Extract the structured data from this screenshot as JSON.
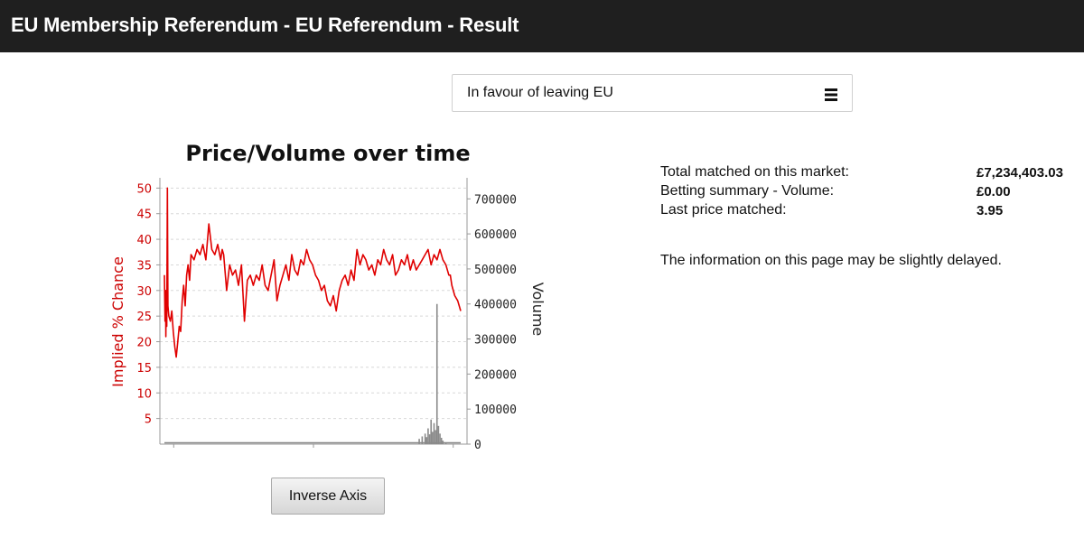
{
  "header": {
    "title": "EU Membership Referendum - EU Referendum - Result"
  },
  "selector": {
    "selected": "In favour of leaving EU",
    "icon": "hamburger-menu-icon"
  },
  "summary": {
    "rows": [
      {
        "label": "Total matched on this market:",
        "value": "£7,234,403.03"
      },
      {
        "label": "Betting summary - Volume:",
        "value": "£0.00"
      },
      {
        "label": "Last price matched:",
        "value": "3.95"
      }
    ],
    "notice": "The information on this page may be slightly delayed."
  },
  "inverse_button": {
    "label": "Inverse Axis"
  },
  "colors": {
    "header_bg": "#1f1f1f",
    "price_line": "#e00000",
    "left_axis": "#cc0000",
    "volume_bars": "#8a8a8a"
  },
  "chart_data": {
    "type": "line",
    "title": "Price/Volume over time",
    "ylabel": "Implied % Chance",
    "y2label": "Volume",
    "ylim": [
      0,
      52
    ],
    "y2lim": [
      0,
      760000
    ],
    "yticks": [
      "5",
      "10",
      "15",
      "20",
      "25",
      "30",
      "35",
      "40",
      "45",
      "50"
    ],
    "y2ticks": [
      "0",
      "100000",
      "200000",
      "300000",
      "400000",
      "500000",
      "600000",
      "700000"
    ],
    "grid": true,
    "series": [
      {
        "axis": "left",
        "color": "#e00000",
        "x": [
          0,
          0.2,
          0.4,
          0.5,
          0.6,
          0.8,
          1,
          1.2,
          1.5,
          2,
          2.5,
          3,
          3.5,
          4,
          4.5,
          5,
          5.5,
          6,
          6.5,
          7,
          7.5,
          8,
          8.5,
          9,
          10,
          11,
          12,
          13,
          14,
          15,
          16,
          17,
          18,
          19,
          19.5,
          20,
          21,
          22,
          23,
          24,
          25,
          26,
          27,
          28,
          29,
          30,
          31,
          32,
          33,
          34,
          35,
          36,
          37,
          38,
          39,
          40,
          41,
          42,
          43,
          44,
          45,
          46,
          47,
          48,
          49,
          50,
          51,
          52,
          53,
          54,
          55,
          56,
          57,
          58,
          59,
          60,
          61,
          62,
          63,
          64,
          65,
          66,
          67,
          68,
          69,
          70,
          71,
          72,
          73,
          74,
          75,
          76,
          77,
          78,
          79,
          80,
          81,
          82,
          83,
          84,
          85,
          86,
          87,
          88,
          89,
          90,
          91,
          92,
          93,
          94,
          95,
          96,
          96.5,
          97,
          98,
          99,
          100
        ],
        "values": [
          33,
          24,
          30,
          21,
          29,
          23,
          50,
          27,
          25,
          24,
          26,
          22,
          19,
          17,
          20,
          23,
          22,
          28,
          31,
          27,
          33,
          35,
          32,
          37,
          36,
          38,
          37,
          39,
          36,
          43,
          38,
          37,
          39,
          36,
          38,
          37,
          30,
          35,
          33,
          34,
          31,
          35,
          24,
          32,
          33,
          31,
          33,
          32,
          35,
          31,
          30,
          33,
          36,
          28,
          31,
          33,
          35,
          32,
          37,
          34,
          33,
          36,
          35,
          38,
          36,
          35,
          33,
          32,
          30,
          31,
          28,
          27,
          29,
          26,
          30,
          32,
          33,
          31,
          34,
          32,
          38,
          35,
          37,
          36,
          34,
          35,
          33,
          36,
          35,
          38,
          36,
          35,
          37,
          33,
          34,
          36,
          35,
          37,
          34,
          36,
          34,
          35,
          36,
          37,
          38,
          35,
          37,
          36,
          38,
          36,
          35,
          33,
          33,
          31,
          29,
          28,
          26
        ]
      },
      {
        "axis": "right",
        "color": "#8a8a8a",
        "x": [
          86,
          87,
          88,
          88.5,
          89,
          89.5,
          90,
          90.5,
          91,
          91.5,
          92,
          92.5,
          93,
          93.5,
          94,
          95
        ],
        "values": [
          15000,
          22000,
          30000,
          20000,
          45000,
          28000,
          70000,
          35000,
          60000,
          40000,
          400000,
          52000,
          30000,
          18000,
          10000,
          5000
        ]
      }
    ]
  }
}
